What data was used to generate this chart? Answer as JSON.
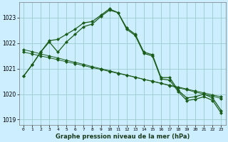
{
  "xlabel": "Graphe pression niveau de la mer (hPa)",
  "background_color": "#cceeff",
  "grid_color": "#99cccc",
  "line_color": "#1a5c1a",
  "xlim": [
    -0.5,
    23.5
  ],
  "ylim": [
    1018.8,
    1023.6
  ],
  "yticks": [
    1019,
    1020,
    1021,
    1022,
    1023
  ],
  "xticks": [
    0,
    1,
    2,
    3,
    4,
    5,
    6,
    7,
    8,
    9,
    10,
    11,
    12,
    13,
    14,
    15,
    16,
    17,
    18,
    19,
    20,
    21,
    22,
    23
  ],
  "line1": [
    1020.7,
    1021.15,
    1021.65,
    1022.1,
    1022.15,
    1022.35,
    1022.55,
    1022.8,
    1022.85,
    1023.1,
    1023.35,
    1023.2,
    1022.6,
    1022.35,
    1021.65,
    1021.55,
    1020.65,
    1020.65,
    1020.15,
    1019.85,
    1019.9,
    1020.0,
    1019.85,
    1019.35
  ],
  "line2": [
    1020.7,
    1021.15,
    1021.65,
    1022.05,
    1021.65,
    1022.05,
    1022.35,
    1022.65,
    1022.75,
    1023.05,
    1023.3,
    1023.2,
    1022.55,
    1022.3,
    1021.6,
    1021.5,
    1020.6,
    1020.55,
    1020.1,
    1019.75,
    1019.8,
    1019.9,
    1019.75,
    1019.25
  ],
  "line3": [
    1021.65,
    1021.58,
    1021.5,
    1021.43,
    1021.35,
    1021.27,
    1021.2,
    1021.12,
    1021.04,
    1020.97,
    1020.89,
    1020.81,
    1020.74,
    1020.66,
    1020.58,
    1020.51,
    1020.43,
    1020.35,
    1020.28,
    1020.2,
    1020.12,
    1020.05,
    1019.97,
    1019.89
  ],
  "line4": [
    1021.75,
    1021.67,
    1021.58,
    1021.5,
    1021.42,
    1021.33,
    1021.25,
    1021.17,
    1021.08,
    1021.0,
    1020.92,
    1020.83,
    1020.75,
    1020.67,
    1020.58,
    1020.5,
    1020.42,
    1020.33,
    1020.25,
    1020.17,
    1020.08,
    1020.0,
    1019.92,
    1019.83
  ]
}
